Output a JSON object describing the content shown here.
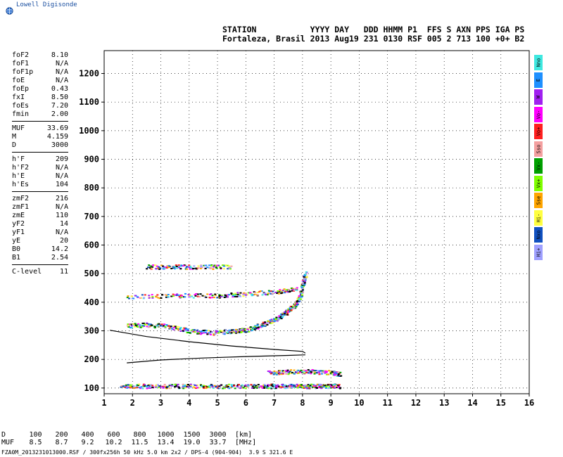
{
  "logo": {
    "text": "Lowell Digisonde"
  },
  "header": {
    "line1": "STATION           YYYY DAY   DDD HHMM P1  FFS S AXN PPS IGA PS",
    "line2": "Fortaleza, Brasil 2013 Aug19 231 0130 RSF 005 2 713 100 +0+ B2"
  },
  "params": {
    "group1": [
      {
        "label": "foF2",
        "value": "8.10"
      },
      {
        "label": "foF1",
        "value": "N/A"
      },
      {
        "label": "foF1p",
        "value": "N/A"
      },
      {
        "label": "foE",
        "value": "N/A"
      },
      {
        "label": "foEp",
        "value": "0.43"
      },
      {
        "label": "fxI",
        "value": "8.50"
      },
      {
        "label": "foEs",
        "value": "7.20"
      },
      {
        "label": "fmin",
        "value": "2.00"
      }
    ],
    "group2": [
      {
        "label": "MUF",
        "value": "33.69"
      },
      {
        "label": "M",
        "value": "4.159"
      },
      {
        "label": "D",
        "value": "3000"
      }
    ],
    "group3": [
      {
        "label": "h'F",
        "value": "209"
      },
      {
        "label": "h'F2",
        "value": "N/A"
      },
      {
        "label": "h'E",
        "value": "N/A"
      },
      {
        "label": "h'Es",
        "value": "104"
      }
    ],
    "group4": [
      {
        "label": "zmF2",
        "value": "216"
      },
      {
        "label": "zmF1",
        "value": "N/A"
      },
      {
        "label": "zmE",
        "value": "110"
      },
      {
        "label": "yF2",
        "value": "14"
      },
      {
        "label": "yF1",
        "value": "N/A"
      },
      {
        "label": "yE",
        "value": "20"
      },
      {
        "label": "B0",
        "value": "14.2"
      },
      {
        "label": "B1",
        "value": "2.54"
      }
    ],
    "group5": [
      {
        "label": "C-level",
        "value": "11"
      }
    ]
  },
  "legend": [
    {
      "label": "Nno",
      "color": "#3fe8e0"
    },
    {
      "label": "E",
      "color": "#1e90ff"
    },
    {
      "label": "W",
      "color": "#a020f0"
    },
    {
      "label": "Vo-",
      "color": "#ff00ff"
    },
    {
      "label": "Vo+",
      "color": "#ff2020"
    },
    {
      "label": "Sso",
      "color": "#f4a0a0"
    },
    {
      "label": "Vx-",
      "color": "#00a000"
    },
    {
      "label": "Vx+",
      "color": "#7fff00"
    },
    {
      "label": "Sse",
      "color": "#ffa500"
    },
    {
      "label": "Hi-",
      "color": "#ffff40"
    },
    {
      "label": "Nxo",
      "color": "#1050c0"
    },
    {
      "label": "Hi+",
      "color": "#9fa0ff"
    }
  ],
  "dm_table": {
    "d_label": "D",
    "d_values": [
      "100",
      "200",
      "400",
      "600",
      "800",
      "1000",
      "1500",
      "3000"
    ],
    "d_unit": "[km]",
    "muf_label": "MUF",
    "muf_values": [
      "8.5",
      "8.7",
      "9.2",
      "10.2",
      "11.5",
      "13.4",
      "19.0",
      "33.7"
    ],
    "muf_unit": "[MHz]"
  },
  "footer": "FZA0M_2013231013000.RSF / 300fx256h 50 kHz 5.0 km 2x2 / DPS-4 (904-904)  3.9 S 321.6 E",
  "chart_data": {
    "type": "scatter",
    "title": "",
    "xlabel": "",
    "ylabel": "",
    "xlim": [
      1,
      16
    ],
    "ylim": [
      80,
      1280
    ],
    "x_ticks": [
      "1",
      "2",
      "3",
      "4",
      "5",
      "6",
      "7",
      "8",
      "9",
      "10",
      "11",
      "12",
      "13",
      "14",
      "15",
      "16"
    ],
    "y_ticks": [
      "100",
      "200",
      "300",
      "400",
      "500",
      "600",
      "700",
      "800",
      "900",
      "1000",
      "1100",
      "1200"
    ],
    "grid": true,
    "traces": [
      {
        "name": "F trace",
        "x": [
          1.8,
          2.5,
          3.2,
          4.0,
          4.8,
          5.5,
          6.0,
          6.5,
          7.0,
          7.4,
          7.7,
          7.9,
          8.0,
          8.1
        ],
        "y": [
          320,
          322,
          318,
          300,
          295,
          300,
          305,
          320,
          340,
          365,
          390,
          420,
          470,
          505
        ]
      },
      {
        "name": "Es trace",
        "x": [
          1.6,
          2.5,
          3.5,
          4.5,
          5.5,
          6.5,
          7.2,
          7.8,
          8.2,
          8.8,
          9.3
        ],
        "y": [
          108,
          108,
          108,
          108,
          108,
          108,
          108,
          108,
          108,
          108,
          108
        ]
      },
      {
        "name": "F multiple",
        "x": [
          1.8,
          3.5,
          5.0,
          6.0,
          7.2,
          7.8
        ],
        "y": [
          420,
          425,
          425,
          430,
          440,
          450
        ]
      },
      {
        "name": "F multiple 2",
        "x": [
          2.5,
          3.5,
          4.5,
          5.5
        ],
        "y": [
          525,
          525,
          525,
          525
        ]
      },
      {
        "name": "Es multiple",
        "x": [
          6.8,
          7.5,
          8.2,
          9.0,
          9.3
        ],
        "y": [
          155,
          158,
          160,
          155,
          150
        ]
      }
    ],
    "profiles": [
      {
        "name": "O model",
        "x": [
          1.2,
          2.5,
          4.0,
          5.5,
          7.0,
          8.0,
          8.1
        ],
        "y": [
          302,
          280,
          262,
          247,
          235,
          228,
          222
        ]
      },
      {
        "name": "O base",
        "x": [
          1.8,
          3.0,
          4.5,
          6.0,
          7.5,
          8.1
        ],
        "y": [
          188,
          198,
          205,
          210,
          214,
          216
        ]
      }
    ]
  }
}
